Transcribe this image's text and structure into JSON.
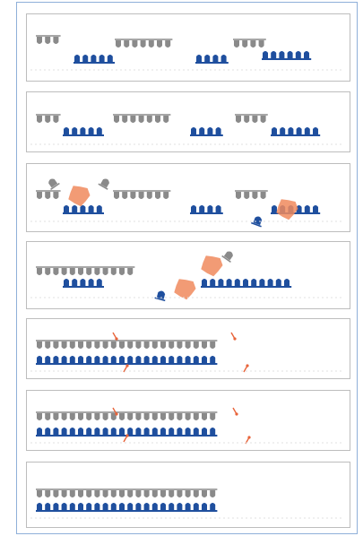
{
  "figure": {
    "panel_count": 7,
    "colors": {
      "top_strand": "#8a8a8a",
      "bottom_strand": "#1f4f9e",
      "enzyme": "#f08a5d",
      "nick_marker": "#e8643a",
      "panel_border": "#bdbdbd",
      "frame_border": "#8fb0d9"
    },
    "panels": [
      {
        "step": 1,
        "top_fragments": [
          3,
          7,
          4
        ],
        "bottom_fragments": [
          5,
          4,
          6
        ],
        "enzymes": 0,
        "nicks": 0,
        "free_blocks": 0,
        "released_blocks": 0
      },
      {
        "step": 2,
        "top_fragments": [
          3,
          7,
          4
        ],
        "bottom_fragments": [
          5,
          4,
          6
        ],
        "enzymes": 0,
        "nicks": 0,
        "free_blocks": 0,
        "released_blocks": 0
      },
      {
        "step": 3,
        "top_fragments": [
          3,
          7,
          4
        ],
        "bottom_fragments": [
          5,
          4,
          6
        ],
        "enzymes": 2,
        "nicks": 0,
        "free_blocks": 1,
        "released_blocks": 2
      },
      {
        "step": 4,
        "top_fragments": [
          12
        ],
        "bottom_fragments": [
          5,
          11
        ],
        "enzymes": 2,
        "nicks": 0,
        "free_blocks": 1,
        "released_blocks": 1
      },
      {
        "step": 5,
        "top_fragments": [
          22
        ],
        "bottom_fragments": [
          22
        ],
        "enzymes": 0,
        "nicks": 4,
        "free_blocks": 0,
        "released_blocks": 0
      },
      {
        "step": 6,
        "top_fragments": [
          22
        ],
        "bottom_fragments": [
          22
        ],
        "enzymes": 0,
        "nicks": 4,
        "free_blocks": 0,
        "released_blocks": 0
      },
      {
        "step": 7,
        "top_fragments": [
          22
        ],
        "bottom_fragments": [
          22
        ],
        "enzymes": 0,
        "nicks": 0,
        "free_blocks": 0,
        "released_blocks": 0
      }
    ]
  }
}
